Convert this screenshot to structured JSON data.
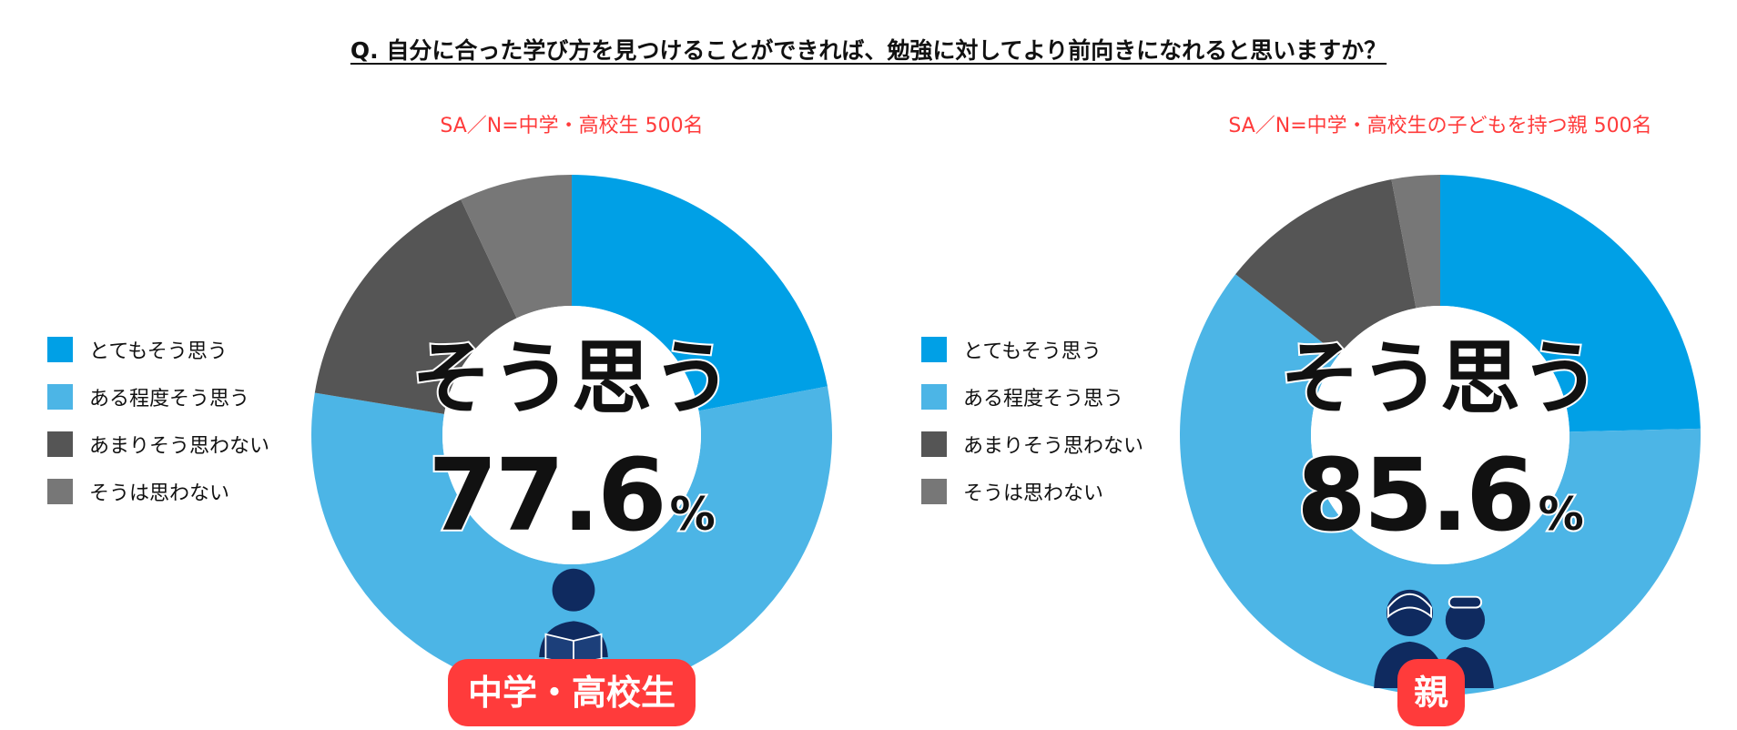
{
  "question": "Q. 自分に合った学び方を見つけることができれば、勉強に対してより前向きになれると思いますか？",
  "legend": [
    {
      "label": "とてもそう思う",
      "color": "#00a0e6"
    },
    {
      "label": "ある程度そう思う",
      "color": "#4cb5e6"
    },
    {
      "label": "あまりそう思わない",
      "color": "#555555"
    },
    {
      "label": "そうは思わない",
      "color": "#777777"
    }
  ],
  "chart_data": [
    {
      "type": "pie",
      "subtitle": "SA／N=中学・高校生 500名",
      "categories": [
        "とてもそう思う",
        "ある程度そう思う",
        "あまりそう思わない",
        "そうは思わない"
      ],
      "values": [
        22.0,
        55.6,
        15.4,
        7.0
      ],
      "center_label": "そう思う",
      "center_value": "77.6",
      "center_unit": "%",
      "badge": "中学・高校生",
      "person_icon": "student-reading-icon"
    },
    {
      "type": "pie",
      "subtitle": "SA／N=中学・高校生の子どもを持つ親 500名",
      "categories": [
        "とてもそう思う",
        "ある程度そう思う",
        "あまりそう思わない",
        "そうは思わない"
      ],
      "values": [
        24.6,
        61.0,
        11.4,
        3.0
      ],
      "center_label": "そう思う",
      "center_value": "85.6",
      "center_unit": "%",
      "badge": "親",
      "person_icon": "parents-icon"
    }
  ]
}
